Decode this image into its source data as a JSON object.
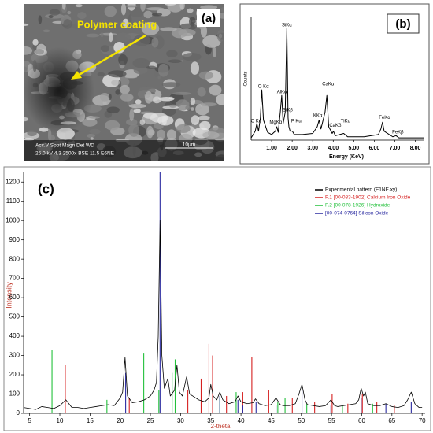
{
  "image_panel": {
    "label": "(a)",
    "annotation": "Polymer coating",
    "info": [
      "Acc.V  Spot Magn    Det  WD",
      "25.0 kV 4.3  2500x  BSE 11.5  E6NE"
    ],
    "scale_bar": "10μm"
  },
  "chart_data": [
    {
      "type": "line",
      "label": "(b)",
      "xlabel": "Energy (KeV)",
      "ylabel": "Counts",
      "color": "#000000",
      "x": [
        0,
        0.2,
        0.28,
        0.36,
        0.45,
        0.52,
        0.6,
        0.8,
        1.0,
        1.18,
        1.25,
        1.32,
        1.42,
        1.49,
        1.56,
        1.66,
        1.74,
        1.8,
        1.84,
        1.9,
        2.01,
        2.1,
        2.5,
        3.0,
        3.22,
        3.31,
        3.4,
        3.6,
        3.69,
        3.78,
        3.95,
        4.01,
        4.1,
        4.51,
        4.7,
        5.5,
        6.2,
        6.32,
        6.4,
        6.48,
        6.9,
        7.06,
        7.2,
        8.0,
        8.4
      ],
      "values": [
        2,
        8,
        15,
        8,
        20,
        45,
        18,
        7,
        5,
        8,
        12,
        7,
        25,
        40,
        15,
        25,
        100,
        20,
        12,
        8,
        8,
        5,
        5,
        6,
        12,
        18,
        10,
        25,
        40,
        12,
        6,
        8,
        4,
        6,
        3,
        3,
        5,
        10,
        16,
        8,
        3,
        4,
        2,
        2,
        2
      ],
      "xlim": [
        0,
        8.4
      ],
      "ylim": [
        0,
        110
      ],
      "xticks": [
        {
          "value": 1,
          "label": "1.00"
        },
        {
          "value": 2,
          "label": "2.00"
        },
        {
          "value": 3,
          "label": "3.00"
        },
        {
          "value": 4,
          "label": "4.00"
        },
        {
          "value": 5,
          "label": "5.00"
        },
        {
          "value": 6,
          "label": "6.00"
        },
        {
          "value": 7,
          "label": "7.00"
        },
        {
          "value": 8,
          "label": "8.00"
        }
      ],
      "annotations": [
        {
          "text": "C Kα",
          "x": 0.25,
          "y": 17
        },
        {
          "text": "O Kα",
          "x": 0.6,
          "y": 48
        },
        {
          "text": "MgKα",
          "x": 1.2,
          "y": 16
        },
        {
          "text": "AlKα",
          "x": 1.5,
          "y": 43
        },
        {
          "text": "SiKα",
          "x": 1.74,
          "y": 103
        },
        {
          "text": "SiKβ",
          "x": 1.78,
          "y": 27
        },
        {
          "text": "P Kα",
          "x": 2.2,
          "y": 17
        },
        {
          "text": "KKα",
          "x": 3.25,
          "y": 22
        },
        {
          "text": "CaKα",
          "x": 3.75,
          "y": 50
        },
        {
          "text": "CaKβ",
          "x": 4.1,
          "y": 13
        },
        {
          "text": "TiKα",
          "x": 4.6,
          "y": 17
        },
        {
          "text": "FeKα",
          "x": 6.5,
          "y": 20
        },
        {
          "text": "FeKβ",
          "x": 7.15,
          "y": 7
        }
      ]
    },
    {
      "type": "line",
      "label": "(c)",
      "xlabel": "2-theta",
      "ylabel": "Intensity",
      "legend": "top-right",
      "xlim": [
        4,
        70.5
      ],
      "ylim": [
        0,
        1250
      ],
      "xticks": [
        5,
        10,
        15,
        20,
        25,
        30,
        35,
        40,
        45,
        50,
        55,
        60,
        65,
        70
      ],
      "yticks": [
        0,
        100,
        200,
        300,
        400,
        500,
        600,
        700,
        800,
        900,
        1000,
        1100,
        1200
      ],
      "series": [
        {
          "name": "Experimental pattern (E1NE.xy)",
          "color": "#000000",
          "mark": "line",
          "x": [
            4,
            5,
            6,
            7,
            8,
            9,
            10,
            11,
            12,
            13,
            14,
            15,
            16,
            17,
            18,
            19,
            20,
            20.4,
            20.8,
            21.2,
            22,
            23,
            24,
            25,
            25.6,
            26,
            26.3,
            26.6,
            26.9,
            27.3,
            27.9,
            28.3,
            29,
            29.4,
            29.8,
            30.3,
            31,
            31.5,
            32,
            33,
            34,
            34.7,
            35,
            35.4,
            36,
            36.5,
            37,
            38,
            39,
            39.5,
            40,
            41,
            42,
            42.4,
            43,
            44,
            45,
            45.8,
            46.5,
            47,
            48,
            49,
            49.6,
            50.1,
            50.6,
            51,
            52,
            53,
            54,
            54.9,
            55.5,
            56,
            57,
            58,
            59,
            59.5,
            59.9,
            60.3,
            60.6,
            61,
            62,
            63,
            64,
            65,
            66,
            67,
            67.6,
            68.2,
            68.8,
            69.5,
            70
          ],
          "values": [
            30,
            25,
            20,
            35,
            30,
            25,
            40,
            70,
            30,
            30,
            25,
            30,
            35,
            40,
            45,
            40,
            80,
            110,
            290,
            90,
            55,
            60,
            70,
            90,
            120,
            160,
            400,
            1000,
            300,
            130,
            180,
            90,
            120,
            250,
            110,
            90,
            190,
            100,
            90,
            70,
            60,
            80,
            150,
            90,
            70,
            110,
            70,
            50,
            60,
            90,
            60,
            50,
            55,
            75,
            50,
            40,
            45,
            80,
            45,
            40,
            40,
            50,
            100,
            150,
            70,
            45,
            40,
            35,
            40,
            70,
            40,
            35,
            40,
            45,
            50,
            70,
            130,
            90,
            110,
            50,
            40,
            40,
            50,
            35,
            30,
            40,
            70,
            110,
            50,
            30,
            30
          ]
        },
        {
          "name": "P.1 [00-083-1902]  Calcium Iron Oxide",
          "color": "#d62020",
          "mark": "stick",
          "x": [
            10.9,
            21.5,
            29.2,
            31.2,
            33.4,
            34.7,
            35.3,
            37.6,
            40.3,
            41.8,
            44.6,
            48.5,
            52.2,
            55.1,
            57.7,
            60.1,
            62.5,
            65.4
          ],
          "values": [
            250,
            80,
            150,
            120,
            180,
            360,
            300,
            90,
            110,
            290,
            120,
            80,
            60,
            100,
            50,
            100,
            60,
            40
          ]
        },
        {
          "name": "P.2 [00-078-1926]  Hydroxide",
          "color": "#22c03a",
          "mark": "stick",
          "x": [
            8.7,
            17.8,
            23.9,
            26.4,
            28.6,
            29.1,
            36.5,
            39.2,
            46.1,
            47.3,
            50.9,
            56.8,
            61.8
          ],
          "values": [
            330,
            70,
            310,
            120,
            210,
            280,
            80,
            110,
            60,
            80,
            50,
            40,
            50
          ]
        },
        {
          "name": "[00-074-0764]  Silicon Oxide",
          "color": "#2a2aa0",
          "mark": "stick",
          "x": [
            20.9,
            26.6,
            36.5,
            39.5,
            40.3,
            42.5,
            45.8,
            50.1,
            54.9,
            59.9,
            64.0,
            68.2
          ],
          "values": [
            210,
            1250,
            90,
            70,
            40,
            60,
            40,
            120,
            40,
            80,
            50,
            60
          ]
        }
      ]
    }
  ]
}
